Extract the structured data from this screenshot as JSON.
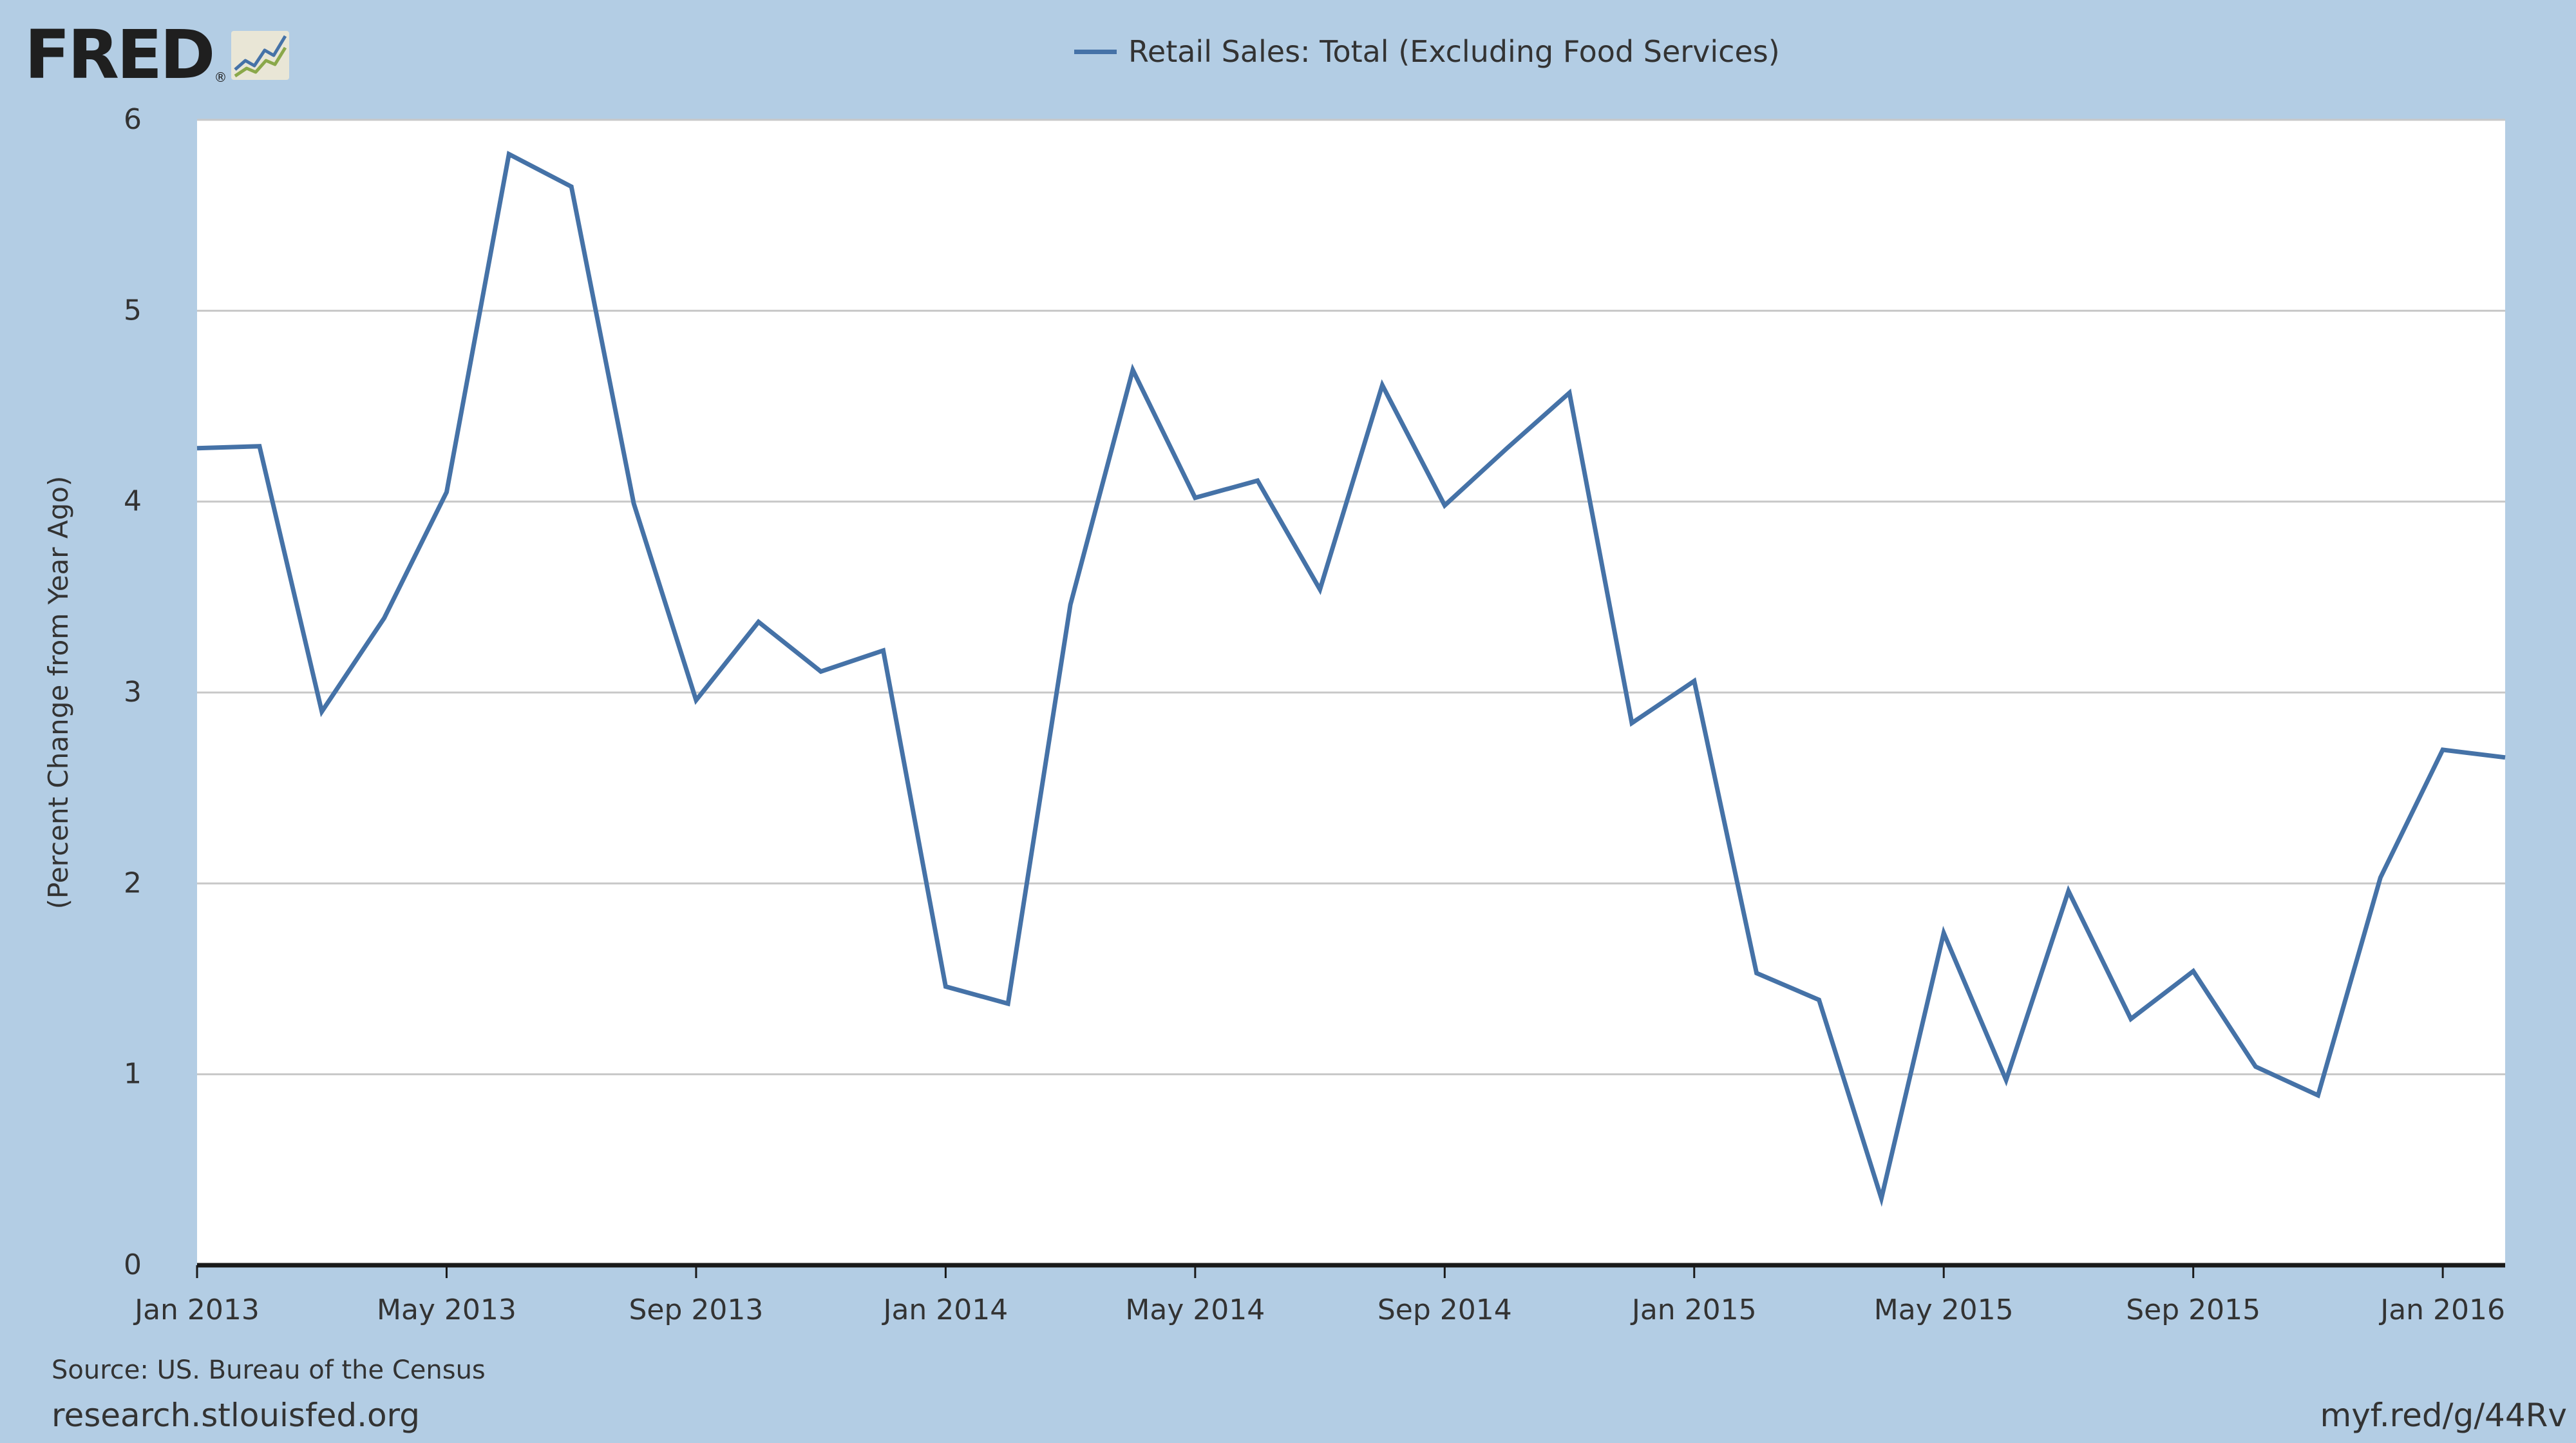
{
  "header": {
    "logo_text": "FRED",
    "logo_registered": "®",
    "logo_icon": "chart-trend-icon"
  },
  "legend": {
    "series_label": "Retail Sales: Total (Excluding Food Services)",
    "color": "#4572a7"
  },
  "footer": {
    "source": "Source: US. Bureau of the Census",
    "site": "research.stlouisfed.org",
    "shortlink": "myf.red/g/44Rv"
  },
  "colors": {
    "background": "#b3cde4",
    "plot_background": "#ffffff",
    "series": "#4572a7",
    "grid": "#c8c8c8"
  },
  "chart_data": {
    "type": "line",
    "title": "",
    "xlabel": "",
    "ylabel": "(Percent Change from Year Ago)",
    "ylim": [
      0,
      6
    ],
    "yticks": [
      0,
      1,
      2,
      3,
      4,
      5,
      6
    ],
    "xlim": [
      "2013-01",
      "2016-02"
    ],
    "xticks": [
      {
        "date": "2013-01",
        "label": "Jan 2013"
      },
      {
        "date": "2013-05",
        "label": "May 2013"
      },
      {
        "date": "2013-09",
        "label": "Sep 2013"
      },
      {
        "date": "2014-01",
        "label": "Jan 2014"
      },
      {
        "date": "2014-05",
        "label": "May 2014"
      },
      {
        "date": "2014-09",
        "label": "Sep 2014"
      },
      {
        "date": "2015-01",
        "label": "Jan 2015"
      },
      {
        "date": "2015-05",
        "label": "May 2015"
      },
      {
        "date": "2015-09",
        "label": "Sep 2015"
      },
      {
        "date": "2016-01",
        "label": "Jan 2016"
      }
    ],
    "grid": true,
    "legend_position": "top-center",
    "series": [
      {
        "name": "Retail Sales: Total (Excluding Food Services)",
        "color": "#4572a7",
        "x": [
          "2013-01",
          "2013-02",
          "2013-03",
          "2013-04",
          "2013-05",
          "2013-06",
          "2013-07",
          "2013-08",
          "2013-09",
          "2013-10",
          "2013-11",
          "2013-12",
          "2014-01",
          "2014-02",
          "2014-03",
          "2014-04",
          "2014-05",
          "2014-06",
          "2014-07",
          "2014-08",
          "2014-09",
          "2014-10",
          "2014-11",
          "2014-12",
          "2015-01",
          "2015-02",
          "2015-03",
          "2015-04",
          "2015-05",
          "2015-06",
          "2015-07",
          "2015-08",
          "2015-09",
          "2015-10",
          "2015-11",
          "2015-12",
          "2016-01",
          "2016-02"
        ],
        "values": [
          4.28,
          4.29,
          2.9,
          3.39,
          4.05,
          5.82,
          5.65,
          3.99,
          2.96,
          3.37,
          3.11,
          3.22,
          1.46,
          1.37,
          3.46,
          4.69,
          4.02,
          4.11,
          3.54,
          4.61,
          3.98,
          4.28,
          4.57,
          2.84,
          3.06,
          1.53,
          1.39,
          0.35,
          1.74,
          0.97,
          1.96,
          1.29,
          1.54,
          1.04,
          0.89,
          2.03,
          2.7,
          2.66
        ]
      }
    ]
  }
}
